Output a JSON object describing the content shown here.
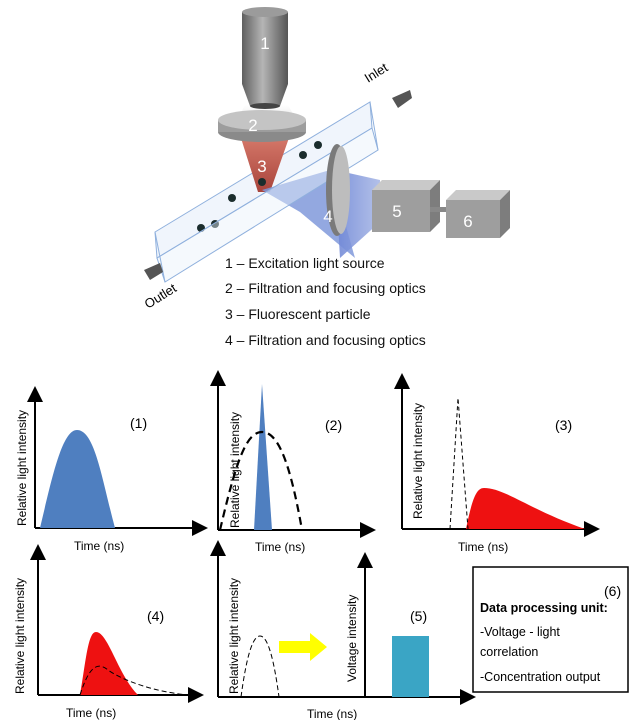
{
  "setup": {
    "component_numbers": [
      "1",
      "2",
      "3",
      "4",
      "5",
      "6"
    ],
    "inlet_label": "Inlet",
    "outlet_label": "Outlet",
    "legend": [
      "1 – Excitation light source",
      "2 – Filtration and focusing optics",
      "3 – Fluorescent particle",
      "4 – Filtration and focusing optics"
    ]
  },
  "panels": {
    "p1": {
      "tag": "(1)",
      "ylabel": "Relative light intensity",
      "xlabel": "Time (ns)"
    },
    "p2": {
      "tag": "(2)",
      "ylabel": "Relative light intensity",
      "xlabel": "Time (ns)"
    },
    "p3": {
      "tag": "(3)",
      "ylabel": "Relative light intensity",
      "xlabel": "Time (ns)"
    },
    "p4": {
      "tag": "(4)",
      "ylabel": "Relative light intensity",
      "xlabel": "Time (ns)"
    },
    "p5": {
      "tag": "(5)",
      "ylabel_light": "Relative light intensity",
      "ylabel_voltage": "Voltage intensity",
      "xlabel": "Time (ns)"
    },
    "p6": {
      "tag": "(6)",
      "title": "Data processing unit:",
      "lines": [
        "-Voltage - light",
        "correlation",
        "-Concentration output"
      ]
    }
  },
  "colors": {
    "blue_pulse": "#4f7fc0",
    "red_pulse": "#ee1111",
    "voltage_bar": "#3aa5c5",
    "arrow": "#ffff00",
    "metal": "#8a8a8a"
  }
}
